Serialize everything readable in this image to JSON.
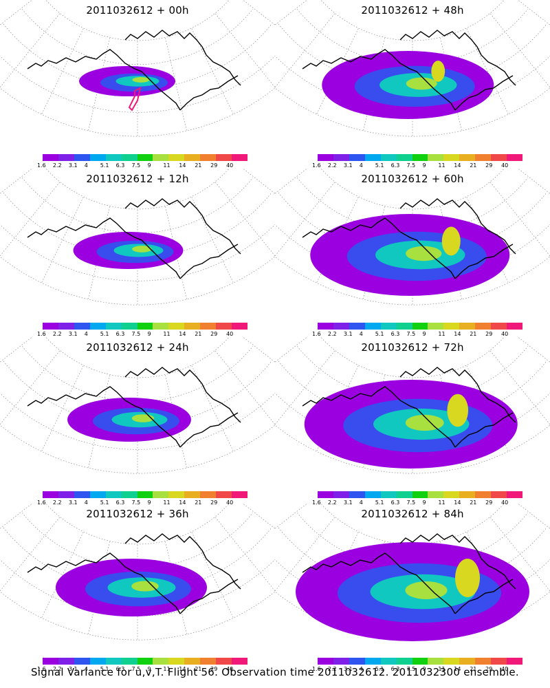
{
  "panels": [
    {
      "title": "2011032612 + 00h",
      "spread": 0.0
    },
    {
      "title": "2011032612 + 48h",
      "spread": 0.55
    },
    {
      "title": "2011032612 + 12h",
      "spread": 0.1
    },
    {
      "title": "2011032612 + 60h",
      "spread": 0.75
    },
    {
      "title": "2011032612 + 24h",
      "spread": 0.2
    },
    {
      "title": "2011032612 + 72h",
      "spread": 0.85
    },
    {
      "title": "2011032612 + 36h",
      "spread": 0.4
    },
    {
      "title": "2011032612 + 84h",
      "spread": 1.0
    }
  ],
  "colorbar": {
    "colors": [
      "#9a00e0",
      "#7f20e8",
      "#2f55f0",
      "#00a8f0",
      "#10c8c0",
      "#10d090",
      "#10d010",
      "#a8e040",
      "#d8d820",
      "#e8b020",
      "#f08030",
      "#f04848",
      "#f01878"
    ],
    "labels": [
      "1.6",
      "2.2",
      "3.1",
      "4",
      "5.1",
      "6.3",
      "7.5",
      "9",
      "11",
      "14",
      "21",
      "29",
      "40"
    ]
  },
  "footer": "Signal Variance for u,v,T. Flight 56. Observation time 2011032612. 2011032300 ensemble."
}
